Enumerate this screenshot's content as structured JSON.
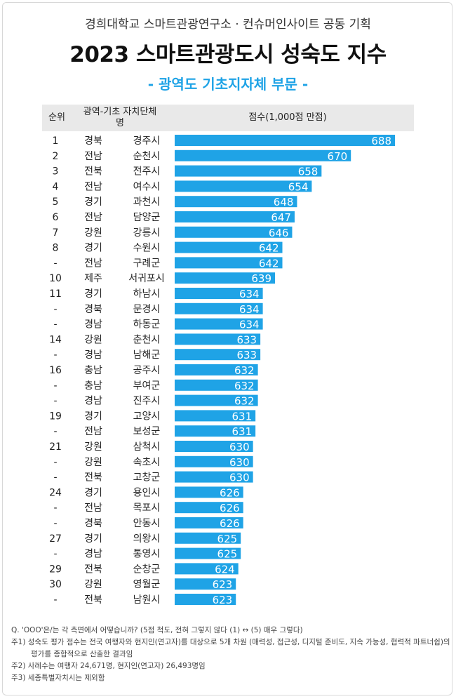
{
  "header": {
    "organizer": "경희대학교 스마트관광연구소 · 컨슈머인사이트 공동 기획",
    "title": "2023 스마트관광도시 성숙도 지수",
    "section": "- 광역도 기초지자체 부문 -"
  },
  "table_header": {
    "rank": "순위",
    "region": "광역-기초 자치단체 명",
    "score": "점수(1,000점 만점)"
  },
  "chart_data": {
    "type": "bar",
    "orientation": "horizontal",
    "bar_color": "#1fa3e6",
    "rows": [
      {
        "rank": "1",
        "province": "경북",
        "city": "경주시",
        "value": 688
      },
      {
        "rank": "2",
        "province": "전남",
        "city": "순천시",
        "value": 670
      },
      {
        "rank": "3",
        "province": "전북",
        "city": "전주시",
        "value": 658
      },
      {
        "rank": "4",
        "province": "전남",
        "city": "여수시",
        "value": 654
      },
      {
        "rank": "5",
        "province": "경기",
        "city": "과천시",
        "value": 648
      },
      {
        "rank": "6",
        "province": "전남",
        "city": "담양군",
        "value": 647
      },
      {
        "rank": "7",
        "province": "강원",
        "city": "강릉시",
        "value": 646
      },
      {
        "rank": "8",
        "province": "경기",
        "city": "수원시",
        "value": 642
      },
      {
        "rank": "-",
        "province": "전남",
        "city": "구례군",
        "value": 642
      },
      {
        "rank": "10",
        "province": "제주",
        "city": "서귀포시",
        "value": 639
      },
      {
        "rank": "11",
        "province": "경기",
        "city": "하남시",
        "value": 634
      },
      {
        "rank": "-",
        "province": "경북",
        "city": "문경시",
        "value": 634
      },
      {
        "rank": "-",
        "province": "경남",
        "city": "하동군",
        "value": 634
      },
      {
        "rank": "14",
        "province": "강원",
        "city": "춘천시",
        "value": 633
      },
      {
        "rank": "-",
        "province": "경남",
        "city": "남해군",
        "value": 633
      },
      {
        "rank": "16",
        "province": "충남",
        "city": "공주시",
        "value": 632
      },
      {
        "rank": "-",
        "province": "충남",
        "city": "부여군",
        "value": 632
      },
      {
        "rank": "-",
        "province": "경남",
        "city": "진주시",
        "value": 632
      },
      {
        "rank": "19",
        "province": "경기",
        "city": "고양시",
        "value": 631
      },
      {
        "rank": "-",
        "province": "전남",
        "city": "보성군",
        "value": 631
      },
      {
        "rank": "21",
        "province": "강원",
        "city": "삼척시",
        "value": 630
      },
      {
        "rank": "-",
        "province": "강원",
        "city": "속초시",
        "value": 630
      },
      {
        "rank": "-",
        "province": "전북",
        "city": "고창군",
        "value": 630
      },
      {
        "rank": "24",
        "province": "경기",
        "city": "용인시",
        "value": 626
      },
      {
        "rank": "-",
        "province": "전남",
        "city": "목포시",
        "value": 626
      },
      {
        "rank": "-",
        "province": "경북",
        "city": "안동시",
        "value": 626
      },
      {
        "rank": "27",
        "province": "경기",
        "city": "의왕시",
        "value": 625
      },
      {
        "rank": "-",
        "province": "경남",
        "city": "통영시",
        "value": 625
      },
      {
        "rank": "29",
        "province": "전북",
        "city": "순창군",
        "value": 624
      },
      {
        "rank": "30",
        "province": "강원",
        "city": "영월군",
        "value": 623
      },
      {
        "rank": "-",
        "province": "전북",
        "city": "남원시",
        "value": 623
      }
    ]
  },
  "notes": {
    "q": "Q. 'OOO'은/는 각 측면에서 어떻습니까? (5점 척도, 전혀 그렇지 않다 (1) ↔ (5) 매우 그렇다)",
    "note1": "주1) 성숙도 평가 점수는 전국 여행자와 현지인(연고자)를 대상으로 5개 차원 (매력성, 접근성, 디지털 준비도, 지속 가능성, 협력적 파트너쉽)의",
    "note1b": "평가를 종합적으로 산출한 결과임",
    "note2": "주2) 사례수는 여행자 24,671명, 현지인(연고자) 26,493명임",
    "note3": "주3) 세종특별자치시는 제외함"
  }
}
